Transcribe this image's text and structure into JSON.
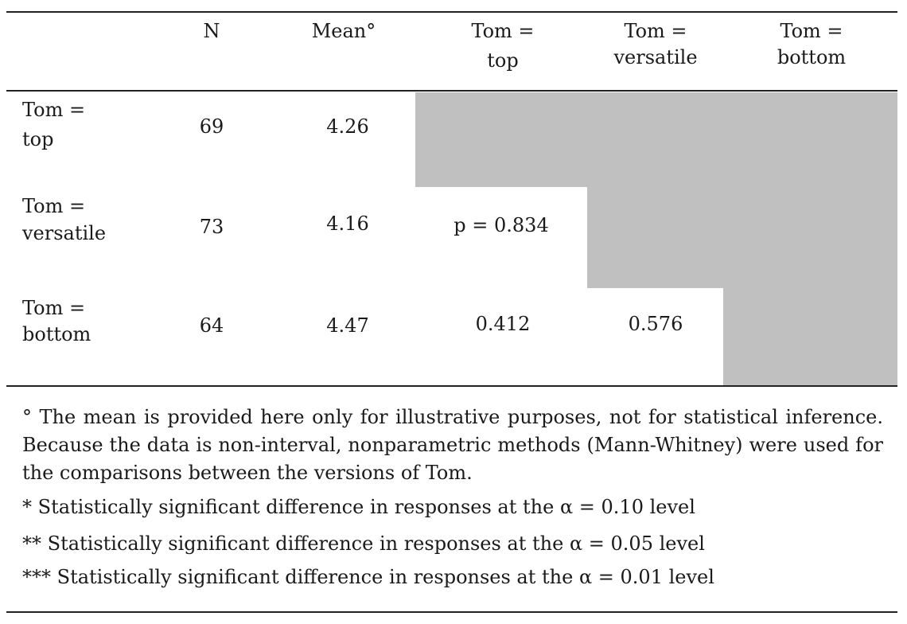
{
  "table": {
    "headers": {
      "row_label": "",
      "n": "N",
      "mean": "Mean°",
      "top_line1": "Tom =",
      "top_line2": "top",
      "versatile_line1": "Tom =",
      "versatile_line2": "versatile",
      "bottom_line1": "Tom =",
      "bottom_line2": "bottom"
    },
    "rows": [
      {
        "label_line1": "Tom =",
        "label_line2": "top",
        "n": "69",
        "mean": "4.26",
        "vs_top": "",
        "vs_versatile": ""
      },
      {
        "label_line1": "Tom =",
        "label_line2": "versatile",
        "n": "73",
        "mean": "4.16",
        "vs_top": "p = 0.834",
        "vs_versatile": ""
      },
      {
        "label_line1": "Tom =",
        "label_line2": "bottom",
        "n": "64",
        "mean": "4.47",
        "vs_top": "0.412",
        "vs_versatile": "0.576"
      }
    ],
    "shade_color": "#c0c0c0"
  },
  "notes": {
    "degree": "°  The mean is provided here only for illustrative purposes, not for statistical inference. Because the data is non-interval, nonparametric methods (Mann-Whitney) were used for the comparisons between the versions of Tom.",
    "one_star": "*  Statistically significant difference in responses at the α = 0.10 level",
    "two_star": "**  Statistically significant difference in responses at the α = 0.05 level",
    "three_star": "***  Statistically significant difference in responses at the α = 0.01 level"
  }
}
